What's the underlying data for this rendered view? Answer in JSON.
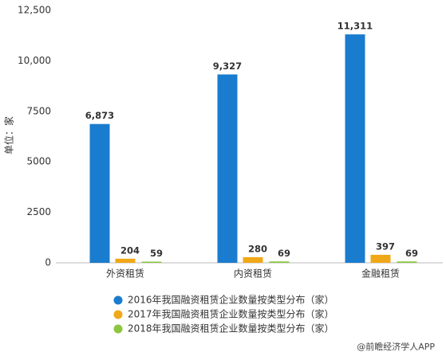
{
  "chart_data": {
    "type": "bar",
    "y_label": "单位：家",
    "categories": [
      "外资租赁",
      "内资租赁",
      "金融租赁"
    ],
    "series": [
      {
        "name": "2016年我国融资租赁企业数量按类型分布（家）",
        "color": "#1a7ccf",
        "values": [
          6873,
          9327,
          11311
        ],
        "value_labels": [
          "6,873",
          "9,327",
          "11,311"
        ]
      },
      {
        "name": "2017年我国融资租赁企业数量按类型分布（家）",
        "color": "#f0a818",
        "values": [
          204,
          280,
          397
        ]
      },
      {
        "name": "2018年我国融资租赁企业数量按类型分布（家）",
        "color": "#8cc63e",
        "values": [
          59,
          69,
          69
        ]
      }
    ],
    "ylim": [
      0,
      12500
    ],
    "yticks": [
      0,
      2500,
      5000,
      7500,
      {
        "value": 10000,
        "label": "10,000"
      },
      {
        "value": 12500,
        "label": "12,500"
      }
    ],
    "grid": false,
    "legend": "bottom",
    "footer": "@前瞻经济学人APP"
  }
}
